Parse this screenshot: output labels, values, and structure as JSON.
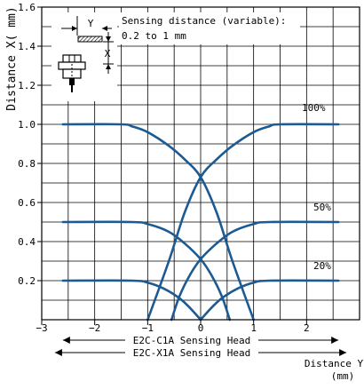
{
  "chart_data": {
    "type": "line",
    "title": "",
    "xlabel": "",
    "ylabel": "Distance X( mm)",
    "xlim": [
      -3,
      3
    ],
    "ylim": [
      0,
      1.6
    ],
    "x_ticks": [
      -3,
      -2,
      -1,
      0,
      1,
      2
    ],
    "x_tick_labels": [
      "−3",
      "−2",
      "−1",
      "0",
      "1",
      "2"
    ],
    "y_ticks": [
      0.2,
      0.4,
      0.6,
      0.8,
      1.0,
      1.2,
      1.4,
      1.6
    ],
    "y_tick_labels": [
      "0.2",
      "0.4",
      "0.6",
      "0.8",
      "1.0",
      "1.2",
      "1.4",
      "1.6"
    ],
    "grid": true,
    "line_color": "#1c5a94",
    "annotation": {
      "line1": "Sensing distance (variable):",
      "line2": "0.2 to 1 mm"
    },
    "sensor_diagram_labels": {
      "y": "Y",
      "x": "X"
    },
    "distance_y_label": {
      "line1": "Distance Y",
      "line2": "(mm)"
    },
    "range_arrows": [
      {
        "label": "E2C-C1A Sensing Head",
        "from": -2.6,
        "to": 2.6
      },
      {
        "label": "E2C-X1A Sensing Head",
        "from": -2.75,
        "to": 2.75
      }
    ],
    "series": [
      {
        "label": "100%",
        "level": 1.0,
        "left": {
          "x": [
            -2.6,
            -1.5,
            -1.3,
            -1.0,
            -0.6,
            -0.3,
            0.0,
            0.3,
            0.6,
            1.0
          ],
          "y": [
            1.0,
            1.0,
            0.99,
            0.96,
            0.89,
            0.82,
            0.73,
            0.55,
            0.3,
            0.0
          ]
        },
        "right": {
          "x": [
            -1.0,
            -0.6,
            -0.3,
            0.0,
            0.3,
            0.6,
            1.0,
            1.3,
            1.5,
            2.6
          ],
          "y": [
            0.0,
            0.3,
            0.55,
            0.73,
            0.82,
            0.89,
            0.96,
            0.99,
            1.0,
            1.0
          ]
        }
      },
      {
        "label": "50%",
        "level": 0.5,
        "left": {
          "x": [
            -2.6,
            -1.3,
            -1.0,
            -0.6,
            -0.3,
            0.0,
            0.2,
            0.4,
            0.55
          ],
          "y": [
            0.5,
            0.5,
            0.49,
            0.45,
            0.39,
            0.31,
            0.23,
            0.12,
            0.0
          ]
        },
        "right": {
          "x": [
            -0.55,
            -0.4,
            -0.2,
            0.0,
            0.3,
            0.6,
            1.0,
            1.3,
            2.6
          ],
          "y": [
            0.0,
            0.12,
            0.23,
            0.31,
            0.39,
            0.45,
            0.49,
            0.5,
            0.5
          ]
        }
      },
      {
        "label": "20%",
        "level": 0.2,
        "left": {
          "x": [
            -2.6,
            -1.3,
            -1.0,
            -0.7,
            -0.4,
            -0.2,
            0.0
          ],
          "y": [
            0.2,
            0.2,
            0.19,
            0.16,
            0.11,
            0.06,
            0.0
          ]
        },
        "right": {
          "x": [
            0.0,
            0.2,
            0.4,
            0.7,
            1.0,
            1.3,
            2.6
          ],
          "y": [
            0.0,
            0.06,
            0.11,
            0.16,
            0.19,
            0.2,
            0.2
          ]
        }
      }
    ]
  }
}
